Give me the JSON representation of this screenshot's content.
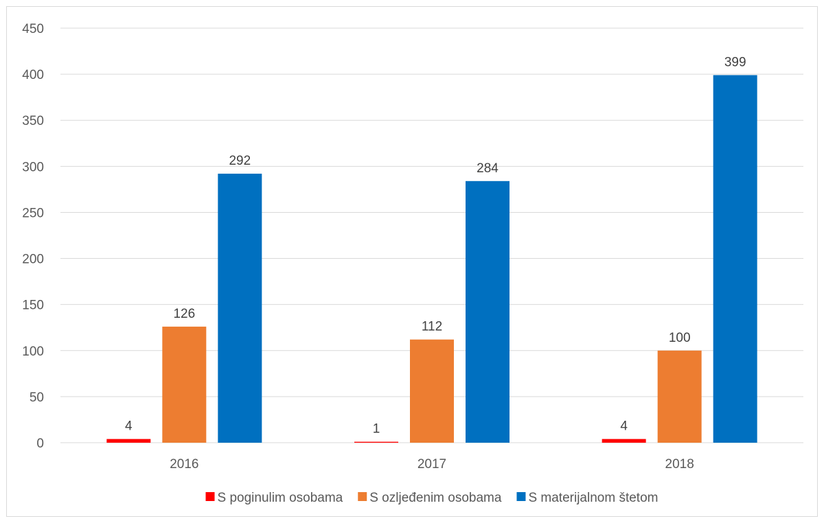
{
  "chart_data": {
    "type": "bar",
    "categories": [
      "2016",
      "2017",
      "2018"
    ],
    "series": [
      {
        "name": "S poginulim osobama",
        "color": "#ff0000",
        "values": [
          4,
          1,
          4
        ]
      },
      {
        "name": "S ozljeđenim osobama",
        "color": "#ed7d31",
        "values": [
          126,
          112,
          100
        ]
      },
      {
        "name": "S materijalnom štetom",
        "color": "#0070c0",
        "values": [
          292,
          284,
          399
        ]
      }
    ],
    "ylim": [
      0,
      450
    ],
    "yticks": [
      0,
      50,
      100,
      150,
      200,
      250,
      300,
      350,
      400,
      450
    ],
    "grid": true,
    "legend": "bottom",
    "data_labels": true,
    "title": "",
    "xlabel": "",
    "ylabel": ""
  }
}
